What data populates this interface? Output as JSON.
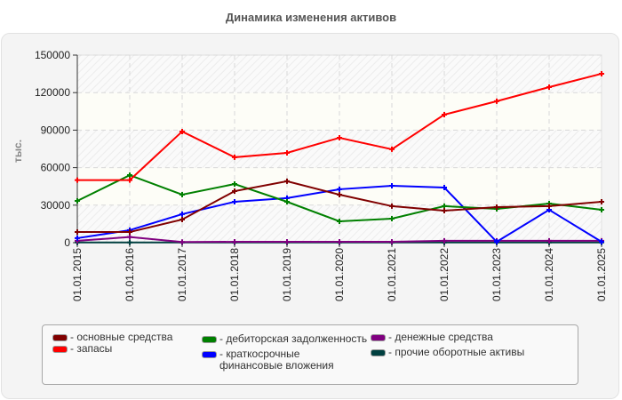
{
  "chart_data": {
    "type": "line",
    "title": "Динамика изменения активов",
    "xlabel": "",
    "ylabel": "тыс.",
    "ylim": [
      0,
      150000
    ],
    "yticks": [
      0,
      30000,
      60000,
      90000,
      120000,
      150000
    ],
    "ytick_labels": [
      "0",
      "30000",
      "60000",
      "90000",
      "120000",
      "150000"
    ],
    "grid": true,
    "legend_position": "bottom",
    "categories": [
      "01.01.2015",
      "01.01.2016",
      "01.01.2017",
      "01.01.2018",
      "01.01.2019",
      "01.01.2020",
      "01.01.2021",
      "01.01.2022",
      "01.01.2023",
      "01.01.2024",
      "01.01.2025"
    ],
    "series": [
      {
        "name": "основные средства",
        "color": "#800000",
        "values": [
          8500,
          8500,
          18500,
          41200,
          49100,
          38400,
          29200,
          25600,
          28400,
          29200,
          32700
        ]
      },
      {
        "name": "запасы",
        "color": "#ff0000",
        "values": [
          50000,
          50000,
          88900,
          68300,
          71800,
          83900,
          74700,
          102400,
          113100,
          124400,
          135100
        ]
      },
      {
        "name": "дебиторская задолженность",
        "color": "#008000",
        "values": [
          33400,
          54000,
          38400,
          46900,
          32700,
          17100,
          19200,
          29200,
          27000,
          31300,
          26300
        ]
      },
      {
        "name": "краткосрочные финансовые вложения",
        "color": "#0000ff",
        "values": [
          3600,
          10000,
          22800,
          32700,
          35600,
          42700,
          45500,
          44100,
          700,
          26300,
          700
        ]
      },
      {
        "name": "денежные средства",
        "color": "#800080",
        "values": [
          1500,
          4500,
          500,
          700,
          700,
          700,
          700,
          1500,
          1500,
          1500,
          1500
        ]
      },
      {
        "name": "прочие оборотные активы",
        "color": "#004040",
        "values": [
          200,
          200,
          200,
          200,
          200,
          200,
          200,
          200,
          200,
          200,
          200
        ]
      }
    ]
  },
  "legend": {
    "items": [
      {
        "label": "- основные средства",
        "color": "#800000"
      },
      {
        "label": "- запасы",
        "color": "#ff0000"
      },
      {
        "label": "- дебиторская задолженность",
        "color": "#008000"
      },
      {
        "label": "- краткосрочные финансовые вложения",
        "color": "#0000ff"
      },
      {
        "label": "- денежные средства",
        "color": "#800080"
      },
      {
        "label": "- прочие оборотные активы",
        "color": "#004040"
      }
    ]
  }
}
